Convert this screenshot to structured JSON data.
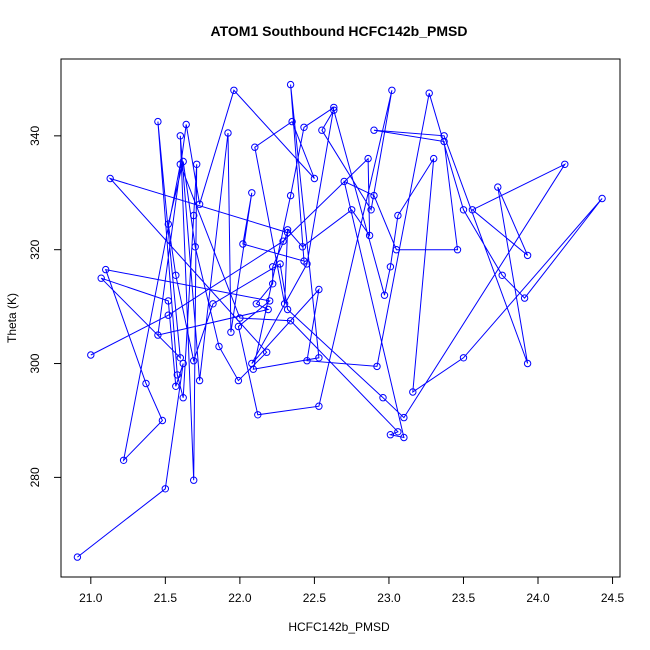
{
  "chart_data": {
    "type": "line",
    "title": "ATOM1 Southbound HCFC142b_PMSD",
    "xlabel": "HCFC142b_PMSD",
    "ylabel": "Theta (K)",
    "xlim": [
      20.8,
      24.55
    ],
    "ylim": [
      262.5,
      353.5
    ],
    "xticks": [
      21.0,
      21.5,
      22.0,
      22.5,
      23.0,
      23.5,
      24.0,
      24.5
    ],
    "xtick_labels": [
      "21.0",
      "21.5",
      "22.0",
      "22.5",
      "23.0",
      "23.5",
      "24.0",
      "24.5"
    ],
    "yticks": [
      280,
      300,
      320,
      340
    ],
    "ytick_labels": [
      "280",
      "300",
      "320",
      "340"
    ],
    "grid": false,
    "marker": "open-circle",
    "color": "#0000ff",
    "series": [
      {
        "x": [
          20.91,
          21.5,
          21.62,
          21.57,
          21.52,
          21.07,
          21.6,
          21.45,
          21.58,
          21.62,
          21.69,
          21.71,
          21.69,
          21.6,
          21.73,
          21.92,
          21.94,
          22.08,
          22.02,
          22.43,
          22.34,
          22.53,
          22.09,
          22.34,
          22.43,
          22.63,
          22.45,
          22.08,
          22.53,
          22.45,
          22.92,
          23.27,
          23.5,
          23.76,
          23.91,
          24.43,
          23.5,
          23.16,
          23.3,
          23.06,
          23.01,
          22.97,
          22.63,
          22.55,
          22.88,
          23.02,
          22.53,
          22.12,
          21.99,
          22.2,
          21.1,
          21.37,
          21.48,
          21.22,
          21.6,
          22.0,
          22.34,
          23.06,
          23.01,
          23.1,
          22.7,
          22.9,
          23.05,
          23.46,
          23.37,
          22.9,
          23.37,
          23.93,
          23.73,
          23.93,
          23.56,
          24.18,
          23.1,
          22.96,
          22.32,
          22.27,
          21.82,
          21.69,
          21.57,
          21.52,
          21.62,
          21.7,
          21.86,
          21.99,
          22.18,
          21.13,
          22.32,
          22.22,
          22.22,
          22.11,
          22.19,
          21.45,
          21.64,
          21.73,
          21.96,
          22.5,
          22.35,
          22.1,
          22.3,
          22.32,
          22.42,
          22.75,
          22.87,
          22.86,
          22.29,
          21.52,
          21.0
        ],
        "y": [
          266,
          278,
          300,
          296,
          311,
          315,
          301,
          342.5,
          298,
          294,
          326,
          335,
          279.5,
          340,
          297,
          340.5,
          305.5,
          330,
          321,
          318,
          349,
          301,
          299,
          329.5,
          341.5,
          345,
          317.5,
          300,
          313,
          300.5,
          299.5,
          347.5,
          327,
          315.5,
          311.5,
          329,
          301,
          295,
          336,
          326,
          317,
          312,
          344.5,
          341,
          327,
          348,
          292.5,
          291,
          306.5,
          311,
          316.5,
          296.5,
          290,
          283,
          335,
          308,
          307.5,
          288,
          287.5,
          287,
          332,
          329.5,
          320,
          320,
          339,
          341,
          340,
          300,
          331,
          319,
          327,
          335,
          290.5,
          294,
          309.5,
          317.5,
          310.5,
          300.5,
          315.5,
          324.5,
          335.5,
          320.5,
          303,
          297,
          302,
          332.5,
          323,
          317,
          314,
          310.5,
          309.5,
          305,
          342,
          328,
          348,
          332.5,
          342.5,
          338,
          310.5,
          323.5,
          320.5,
          327,
          322.5,
          336,
          321.5,
          308.5,
          301.5
        ]
      }
    ]
  }
}
